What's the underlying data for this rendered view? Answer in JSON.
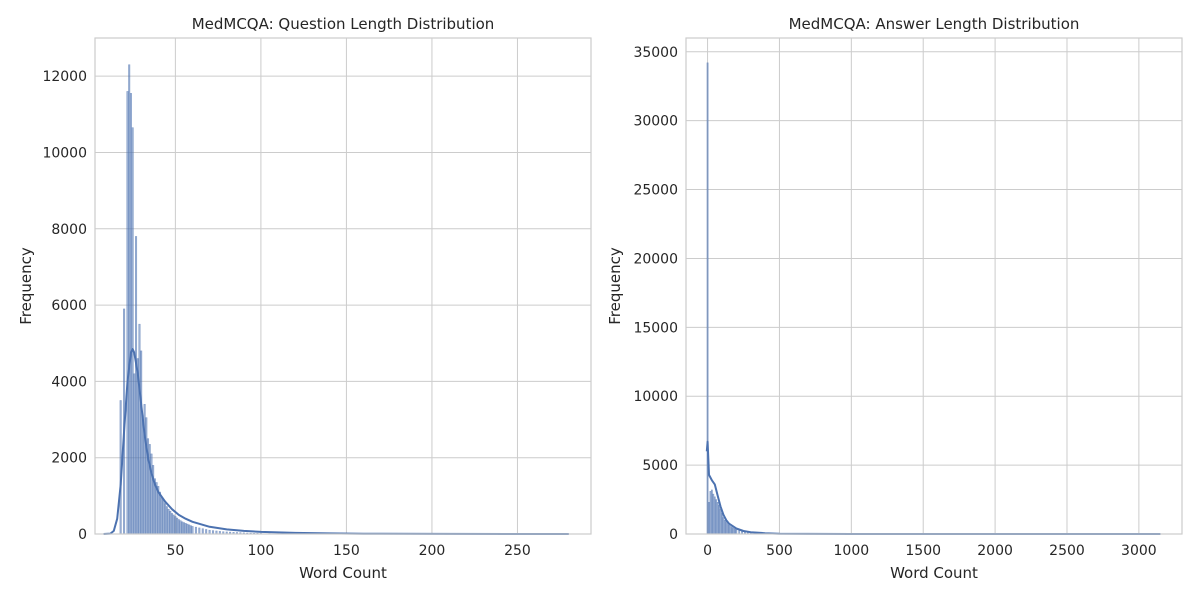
{
  "colors": {
    "background": "#ffffff",
    "grid": "#cccccc",
    "bar_fill": "#4c72b0",
    "kde_line": "#4c72b0",
    "text": "#262626"
  },
  "chart_data": [
    {
      "type": "histogram",
      "title": "MedMCQA: Question Length Distribution",
      "xlabel": "Word Count",
      "ylabel": "Frequency",
      "xlim": [
        3,
        293
      ],
      "ylim": [
        0,
        13000
      ],
      "xticks": [
        50,
        100,
        150,
        200,
        250
      ],
      "yticks": [
        0,
        2000,
        4000,
        6000,
        8000,
        10000,
        12000
      ],
      "grid": true,
      "bin_width": 1,
      "bins_x": [
        18,
        20,
        22,
        23,
        24,
        25,
        26,
        27,
        28,
        29,
        30,
        31,
        32,
        33,
        34,
        35,
        36,
        37,
        38,
        39,
        40,
        41,
        42,
        43,
        44,
        45,
        46,
        47,
        48,
        49,
        50,
        51,
        52,
        53,
        54,
        55,
        56,
        57,
        58,
        59,
        60,
        62,
        64,
        66,
        68,
        70,
        72,
        74,
        76,
        78,
        80,
        82,
        84,
        86,
        88,
        90,
        92,
        94,
        96,
        98,
        100,
        105,
        110,
        115,
        120,
        130,
        140,
        150,
        160,
        180,
        200,
        230,
        260,
        280
      ],
      "bins_y": [
        3500,
        5900,
        11600,
        12300,
        11550,
        10650,
        4200,
        7800,
        4600,
        5500,
        4800,
        3000,
        3400,
        3050,
        2500,
        2350,
        2100,
        1800,
        1450,
        1350,
        1250,
        1100,
        950,
        900,
        800,
        720,
        650,
        600,
        540,
        500,
        460,
        420,
        380,
        350,
        320,
        300,
        280,
        260,
        240,
        220,
        200,
        180,
        160,
        140,
        120,
        100,
        90,
        80,
        70,
        60,
        55,
        50,
        45,
        40,
        35,
        30,
        25,
        22,
        20,
        18,
        15,
        12,
        10,
        8,
        6,
        5,
        4,
        3,
        3,
        2,
        2,
        1,
        1,
        1
      ],
      "kde": {
        "x": [
          8,
          12,
          14,
          16,
          18,
          20,
          22,
          24,
          25,
          26,
          28,
          30,
          32,
          34,
          36,
          38,
          40,
          44,
          48,
          52,
          56,
          60,
          70,
          80,
          90,
          100,
          120,
          140,
          160,
          200,
          250,
          280
        ],
        "y": [
          0,
          10,
          80,
          400,
          1300,
          2700,
          4000,
          4750,
          4850,
          4750,
          4200,
          3400,
          2600,
          2000,
          1600,
          1300,
          1100,
          850,
          650,
          500,
          400,
          320,
          190,
          120,
          80,
          55,
          30,
          15,
          8,
          3,
          1,
          0
        ]
      }
    },
    {
      "type": "histogram",
      "title": "MedMCQA: Answer Length Distribution",
      "xlabel": "Word Count",
      "ylabel": "Frequency",
      "xlim": [
        -150,
        3300
      ],
      "ylim": [
        0,
        36000
      ],
      "xticks": [
        0,
        500,
        1000,
        1500,
        2000,
        2500,
        3000
      ],
      "yticks": [
        0,
        5000,
        10000,
        15000,
        20000,
        25000,
        30000,
        35000
      ],
      "grid": true,
      "bin_width": 10,
      "bins_x": [
        0,
        10,
        20,
        30,
        40,
        50,
        60,
        70,
        80,
        90,
        100,
        110,
        120,
        130,
        140,
        150,
        160,
        170,
        180,
        190,
        200,
        220,
        240,
        260,
        280,
        300,
        350,
        400,
        450,
        500,
        600,
        700,
        800
      ],
      "bins_y": [
        34200,
        2300,
        3100,
        3200,
        2900,
        2700,
        2500,
        2300,
        2100,
        1800,
        1500,
        1200,
        1000,
        900,
        750,
        650,
        550,
        480,
        420,
        360,
        300,
        240,
        190,
        150,
        120,
        100,
        70,
        50,
        35,
        25,
        12,
        6,
        3
      ],
      "kde": {
        "x": [
          -5,
          0,
          5,
          10,
          20,
          30,
          50,
          70,
          90,
          110,
          130,
          150,
          200,
          250,
          300,
          400,
          500,
          700,
          1000,
          1500,
          2000,
          3000,
          3150
        ],
        "y": [
          6000,
          6700,
          5500,
          4300,
          4100,
          3900,
          3600,
          2800,
          2000,
          1400,
          1000,
          750,
          400,
          220,
          130,
          60,
          25,
          8,
          3,
          1,
          0,
          0,
          0
        ]
      }
    }
  ]
}
